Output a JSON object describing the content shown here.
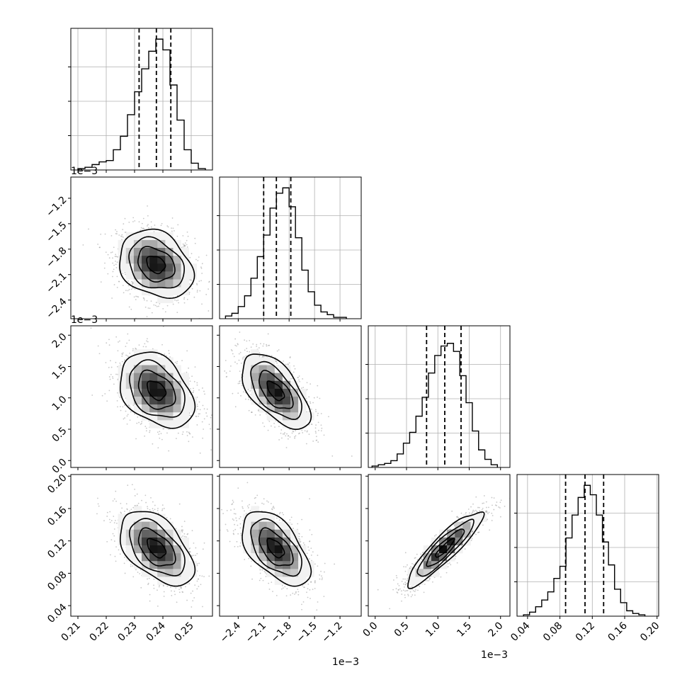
{
  "chart_data": {
    "type": "corner",
    "params": [
      {
        "id": "p0",
        "range": [
          0.2075,
          0.2575
        ],
        "ticks": [
          0.21,
          0.22,
          0.23,
          0.24,
          0.25
        ],
        "tick_labels": [
          "0.21",
          "0.22",
          "0.23",
          "0.24",
          "0.25"
        ],
        "offset_text": ""
      },
      {
        "id": "p1",
        "range": [
          -2.62,
          -0.95
        ],
        "ticks": [
          -2.4,
          -2.1,
          -1.8,
          -1.5,
          -1.2
        ],
        "tick_labels": [
          "−2.4",
          "−2.1",
          "−1.8",
          "−1.5",
          "−1.2"
        ],
        "offset_text": "1e−3"
      },
      {
        "id": "p2",
        "range": [
          -0.11,
          2.15
        ],
        "ticks": [
          0.0,
          0.5,
          1.0,
          1.5,
          2.0
        ],
        "tick_labels": [
          "0.0",
          "0.5",
          "1.0",
          "1.5",
          "2.0"
        ],
        "offset_text": "1e−3"
      },
      {
        "id": "p3",
        "range": [
          0.027,
          0.202
        ],
        "ticks": [
          0.04,
          0.08,
          0.12,
          0.16,
          0.2
        ],
        "tick_labels": [
          "0.04",
          "0.08",
          "0.12",
          "0.16",
          "0.20"
        ],
        "offset_text": ""
      }
    ],
    "histograms": [
      {
        "param": "p0",
        "bins": [
          0.21,
          0.2125,
          0.215,
          0.2175,
          0.22,
          0.2225,
          0.225,
          0.2275,
          0.23,
          0.2325,
          0.235,
          0.2375,
          0.24,
          0.2425,
          0.245,
          0.2475,
          0.25,
          0.2525,
          0.255
        ],
        "counts": [
          0.01,
          0.02,
          0.04,
          0.06,
          0.07,
          0.15,
          0.25,
          0.41,
          0.58,
          0.75,
          0.88,
          0.97,
          0.89,
          0.63,
          0.37,
          0.15,
          0.05,
          0.01
        ],
        "quantiles": [
          0.2316,
          0.2377,
          0.2428
        ]
      },
      {
        "param": "p1",
        "bins": [
          -2.55,
          -2.475,
          -2.4,
          -2.325,
          -2.25,
          -2.175,
          -2.1,
          -2.025,
          -1.95,
          -1.875,
          -1.8,
          -1.725,
          -1.65,
          -1.575,
          -1.5,
          -1.425,
          -1.35,
          -1.275,
          -1.2,
          -1.125
        ],
        "counts": [
          0.02,
          0.04,
          0.09,
          0.17,
          0.3,
          0.46,
          0.62,
          0.82,
          0.93,
          0.97,
          0.83,
          0.6,
          0.36,
          0.2,
          0.1,
          0.05,
          0.03,
          0.01,
          0.01
        ],
        "quantiles": [
          -2.1,
          -1.95,
          -1.78
        ]
      },
      {
        "param": "p2",
        "bins": [
          -0.05,
          0.05,
          0.15,
          0.25,
          0.35,
          0.45,
          0.55,
          0.65,
          0.75,
          0.85,
          0.95,
          1.05,
          1.15,
          1.25,
          1.35,
          1.45,
          1.55,
          1.65,
          1.75,
          1.85,
          1.95
        ],
        "counts": [
          0.01,
          0.02,
          0.03,
          0.05,
          0.1,
          0.18,
          0.26,
          0.38,
          0.52,
          0.7,
          0.83,
          0.9,
          0.92,
          0.86,
          0.68,
          0.48,
          0.27,
          0.13,
          0.06,
          0.02
        ],
        "quantiles": [
          0.82,
          1.11,
          1.37
        ]
      },
      {
        "param": "p3",
        "bins": [
          0.035,
          0.0425,
          0.05,
          0.0575,
          0.065,
          0.0725,
          0.08,
          0.0875,
          0.095,
          0.1025,
          0.11,
          0.1175,
          0.125,
          0.1325,
          0.14,
          0.1475,
          0.155,
          0.1625,
          0.17,
          0.1775,
          0.185
        ],
        "counts": [
          0.01,
          0.03,
          0.07,
          0.12,
          0.18,
          0.28,
          0.37,
          0.58,
          0.75,
          0.88,
          0.97,
          0.9,
          0.75,
          0.55,
          0.38,
          0.2,
          0.1,
          0.04,
          0.02,
          0.01
        ],
        "quantiles": [
          0.087,
          0.111,
          0.134
        ]
      }
    ],
    "pairs": [
      {
        "x": "p0",
        "y": "p1",
        "mean": [
          0.2375,
          -1.98
        ],
        "sd": [
          0.0065,
          0.2
        ],
        "rho": -0.25
      },
      {
        "x": "p0",
        "y": "p2",
        "mean": [
          0.2377,
          1.12
        ],
        "sd": [
          0.0065,
          0.3
        ],
        "rho": -0.35
      },
      {
        "x": "p1",
        "y": "p2",
        "mean": [
          -1.96,
          1.11
        ],
        "sd": [
          0.2,
          0.3
        ],
        "rho": -0.6
      },
      {
        "x": "p0",
        "y": "p3",
        "mean": [
          0.2377,
          0.111
        ],
        "sd": [
          0.0065,
          0.023
        ],
        "rho": -0.5
      },
      {
        "x": "p1",
        "y": "p3",
        "mean": [
          -1.96,
          0.111
        ],
        "sd": [
          0.2,
          0.023
        ],
        "rho": -0.55
      },
      {
        "x": "p2",
        "y": "p3",
        "mean": [
          1.11,
          0.111
        ],
        "sd": [
          0.3,
          0.023
        ],
        "rho": 0.9
      }
    ],
    "contour_levels": [
      0.5,
      1.0,
      1.5,
      2.0
    ],
    "grid": true
  }
}
